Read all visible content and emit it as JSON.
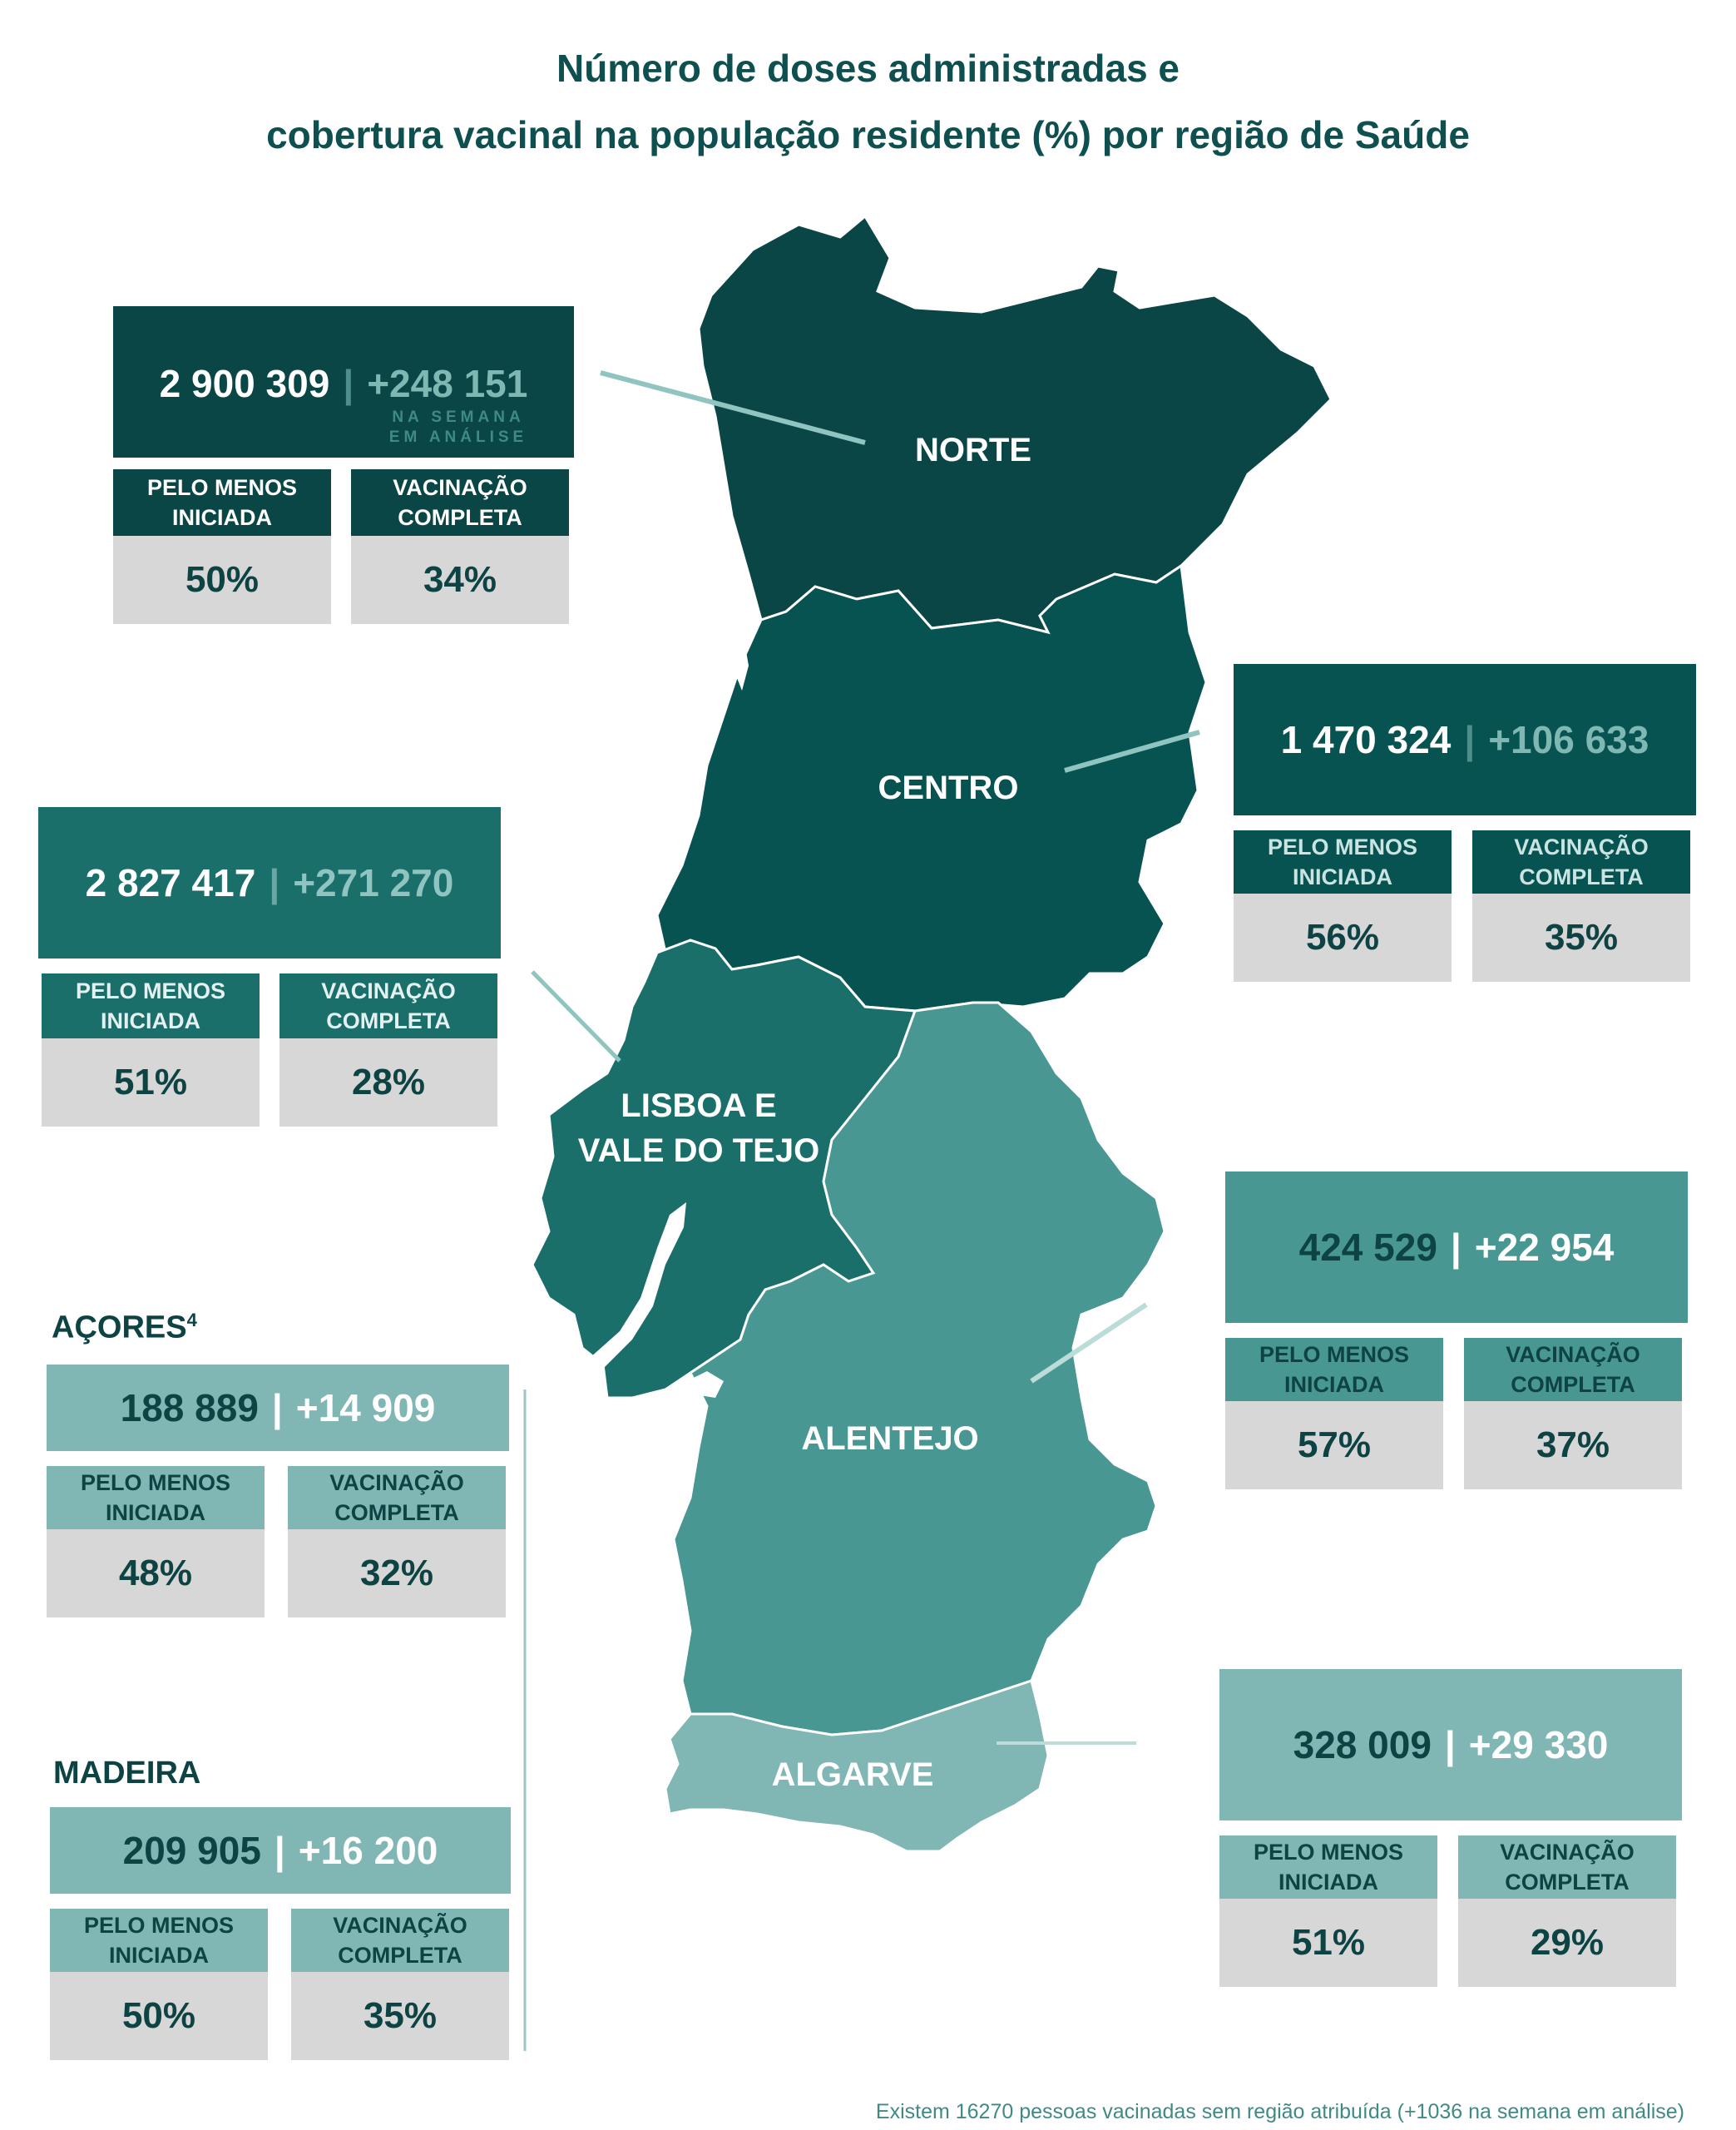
{
  "title": {
    "line1": "Número de doses administradas e",
    "line2": "cobertura vacinal na população residente (%) por região de Saúde"
  },
  "colors": {
    "norte": "#0b4646",
    "centro": "#075351",
    "lisboa": "#1a6f6b",
    "alentejo": "#489792",
    "algarve": "#80b6b3",
    "value_box": "#d7d7d7"
  },
  "regions": {
    "norte": {
      "name": "NORTE",
      "doses": "2 900 309",
      "week": "+248 151",
      "week_note": "NA SEMANA EM ANÁLISE",
      "initiated_label": "PELO MENOS INICIADA",
      "initiated": "50%",
      "complete_label": "VACINAÇÃO COMPLETA",
      "complete": "34%"
    },
    "centro": {
      "name": "CENTRO",
      "doses": "1 470 324",
      "week": "+106 633",
      "initiated_label": "PELO MENOS INICIADA",
      "initiated": "56%",
      "complete_label": "VACINAÇÃO COMPLETA",
      "complete": "35%"
    },
    "lisboa": {
      "name_line1": "LISBOA E",
      "name_line2": "VALE DO TEJO",
      "doses": "2 827 417",
      "week": "+271 270",
      "initiated_label": "PELO MENOS INICIADA",
      "initiated": "51%",
      "complete_label": "VACINAÇÃO COMPLETA",
      "complete": "28%"
    },
    "alentejo": {
      "name": "ALENTEJO",
      "doses": "424 529",
      "week": "+22 954",
      "initiated_label": "PELO MENOS INICIADA",
      "initiated": "57%",
      "complete_label": "VACINAÇÃO COMPLETA",
      "complete": "37%"
    },
    "algarve": {
      "name": "ALGARVE",
      "doses": "328 009",
      "week": "+29 330",
      "initiated_label": "PELO MENOS INICIADA",
      "initiated": "51%",
      "complete_label": "VACINAÇÃO COMPLETA",
      "complete": "29%"
    },
    "acores": {
      "name": "AÇORES",
      "name_sup": "4",
      "doses": "188 889",
      "week": "+14 909",
      "initiated_label": "PELO MENOS INICIADA",
      "initiated": "48%",
      "complete_label": "VACINAÇÃO COMPLETA",
      "complete": "32%"
    },
    "madeira": {
      "name": "MADEIRA",
      "doses": "209 905",
      "week": "+16 200",
      "initiated_label": "PELO MENOS INICIADA",
      "initiated": "50%",
      "complete_label": "VACINAÇÃO COMPLETA",
      "complete": "35%"
    }
  },
  "footnote": "Existem 16270 pessoas vacinadas sem região atribuída (+1036 na semana em análise)"
}
